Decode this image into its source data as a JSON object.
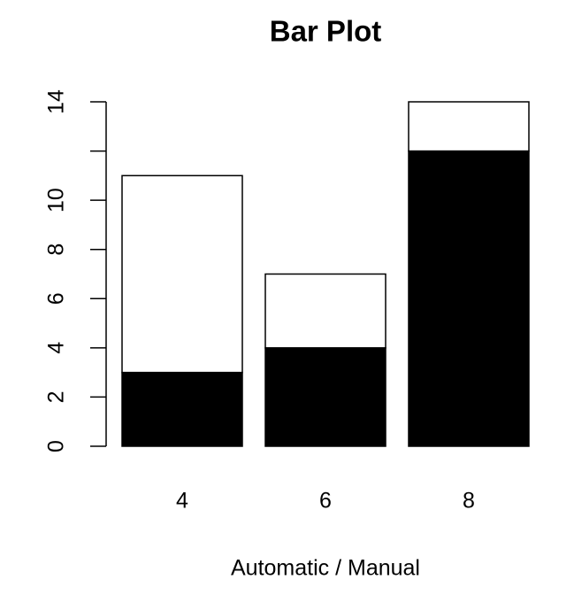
{
  "chart_data": {
    "type": "bar",
    "stacked": true,
    "title": "Bar Plot",
    "x_label": "Automatic / Manual",
    "categories": [
      "4",
      "6",
      "8"
    ],
    "series": [
      {
        "color": "#000000",
        "values": [
          3,
          4,
          12
        ]
      },
      {
        "color": "#ffffff",
        "values": [
          8,
          3,
          2
        ]
      }
    ],
    "ylim": [
      0,
      14
    ],
    "yticks": [
      0,
      2,
      4,
      6,
      8,
      10,
      {
        "value": 12,
        "label": null
      },
      14
    ]
  }
}
